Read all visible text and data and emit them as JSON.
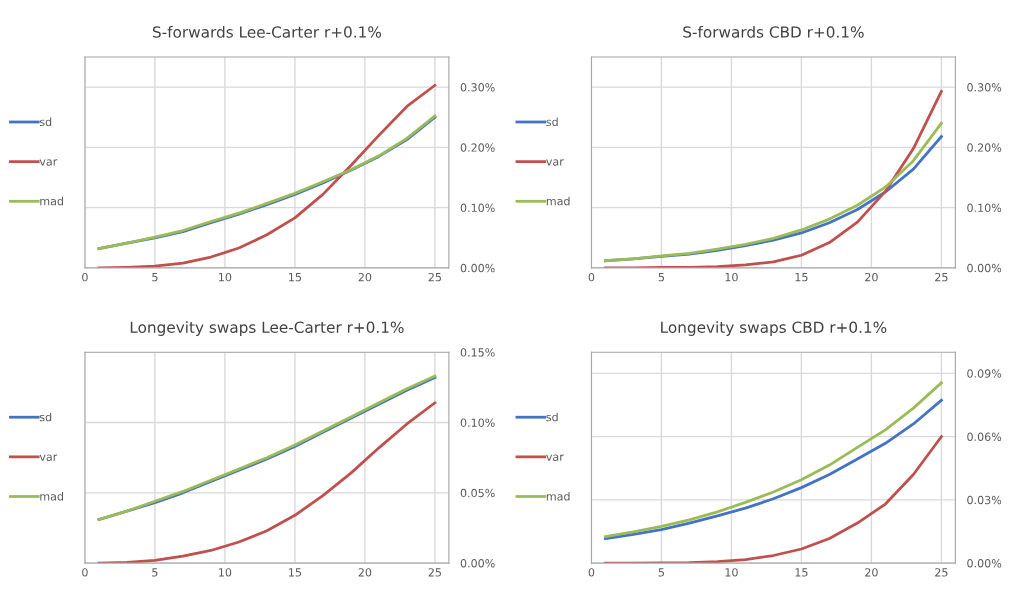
{
  "chart_data": [
    {
      "type": "line",
      "title": "S-forwards Lee-Carter r+0.1%",
      "x": [
        1,
        3,
        5,
        7,
        9,
        11,
        13,
        15,
        17,
        19,
        21,
        23,
        25
      ],
      "xlim": [
        0,
        26
      ],
      "xticks": [
        0,
        5,
        10,
        15,
        20,
        25
      ],
      "ylim": [
        0,
        0.35
      ],
      "yticks": [
        {
          "value": 0,
          "label": "0.00%"
        },
        {
          "value": 0.1,
          "label": "0.10%"
        },
        {
          "value": 0.2,
          "label": "0.20%"
        },
        {
          "value": 0.3,
          "label": "0.30%"
        }
      ],
      "grid": true,
      "legend": "left",
      "series": [
        {
          "name": "sd",
          "color": "#4472c4",
          "values": [
            0.032,
            0.041,
            0.05,
            0.06,
            0.075,
            0.089,
            0.105,
            0.122,
            0.141,
            0.162,
            0.185,
            0.213,
            0.25
          ]
        },
        {
          "name": "var",
          "color": "#c0504d",
          "values": [
            0.0,
            0.001,
            0.003,
            0.008,
            0.018,
            0.033,
            0.055,
            0.083,
            0.122,
            0.17,
            0.22,
            0.268,
            0.303
          ]
        },
        {
          "name": "mad",
          "color": "#9bbb59",
          "values": [
            0.032,
            0.041,
            0.051,
            0.062,
            0.077,
            0.091,
            0.107,
            0.124,
            0.143,
            0.163,
            0.186,
            0.215,
            0.252
          ]
        }
      ]
    },
    {
      "type": "line",
      "title": "S-forwards CBD r+0.1%",
      "x": [
        1,
        3,
        5,
        7,
        9,
        11,
        13,
        15,
        17,
        19,
        21,
        23,
        25
      ],
      "xlim": [
        0,
        26
      ],
      "xticks": [
        0,
        5,
        10,
        15,
        20,
        25
      ],
      "ylim": [
        0,
        0.35
      ],
      "yticks": [
        {
          "value": 0,
          "label": "0.00%"
        },
        {
          "value": 0.1,
          "label": "0.10%"
        },
        {
          "value": 0.2,
          "label": "0.20%"
        },
        {
          "value": 0.3,
          "label": "0.30%"
        }
      ],
      "grid": true,
      "legend": "left",
      "series": [
        {
          "name": "sd",
          "color": "#4472c4",
          "values": [
            0.012,
            0.015,
            0.019,
            0.023,
            0.029,
            0.037,
            0.046,
            0.058,
            0.075,
            0.097,
            0.126,
            0.164,
            0.218
          ]
        },
        {
          "name": "var",
          "color": "#c0504d",
          "values": [
            0,
            0,
            0.001,
            0.001,
            0.002,
            0.005,
            0.01,
            0.021,
            0.042,
            0.076,
            0.127,
            0.198,
            0.293
          ]
        },
        {
          "name": "mad",
          "color": "#9bbb59",
          "values": [
            0.012,
            0.015,
            0.02,
            0.024,
            0.031,
            0.039,
            0.049,
            0.063,
            0.081,
            0.104,
            0.134,
            0.178,
            0.24
          ]
        }
      ]
    },
    {
      "type": "line",
      "title": "Longevity swaps Lee-Carter r+0.1%",
      "x": [
        1,
        3,
        5,
        7,
        9,
        11,
        13,
        15,
        17,
        19,
        21,
        23,
        25
      ],
      "xlim": [
        0,
        26
      ],
      "xticks": [
        0,
        5,
        10,
        15,
        20,
        25
      ],
      "ylim": [
        0,
        0.15
      ],
      "yticks": [
        {
          "value": 0,
          "label": "0.00%"
        },
        {
          "value": 0.05,
          "label": "0.05%"
        },
        {
          "value": 0.1,
          "label": "0.10%"
        },
        {
          "value": 0.15,
          "label": "0.15%"
        }
      ],
      "grid": true,
      "legend": "left",
      "series": [
        {
          "name": "sd",
          "color": "#4472c4",
          "values": [
            0.031,
            0.037,
            0.043,
            0.05,
            0.058,
            0.066,
            0.074,
            0.083,
            0.093,
            0.103,
            0.113,
            0.123,
            0.132
          ]
        },
        {
          "name": "var",
          "color": "#c0504d",
          "values": [
            0,
            0.0005,
            0.002,
            0.005,
            0.009,
            0.015,
            0.023,
            0.034,
            0.048,
            0.064,
            0.082,
            0.099,
            0.114
          ]
        },
        {
          "name": "mad",
          "color": "#9bbb59",
          "values": [
            0.031,
            0.037,
            0.044,
            0.051,
            0.059,
            0.067,
            0.075,
            0.084,
            0.094,
            0.104,
            0.114,
            0.124,
            0.133
          ]
        }
      ]
    },
    {
      "type": "line",
      "title": "Longevity swaps CBD r+0.1%",
      "x": [
        1,
        3,
        5,
        7,
        9,
        11,
        13,
        15,
        17,
        19,
        21,
        23,
        25
      ],
      "xlim": [
        0,
        26
      ],
      "xticks": [
        0,
        5,
        10,
        15,
        20,
        25
      ],
      "ylim": [
        0,
        0.1
      ],
      "yticks": [
        {
          "value": 0,
          "label": "0.00%"
        },
        {
          "value": 0.03,
          "label": "0.03%"
        },
        {
          "value": 0.06,
          "label": "0.06%"
        },
        {
          "value": 0.09,
          "label": "0.09%"
        }
      ],
      "grid": true,
      "legend": "left",
      "series": [
        {
          "name": "sd",
          "color": "#4472c4",
          "values": [
            0.0116,
            0.0136,
            0.0159,
            0.019,
            0.0224,
            0.0261,
            0.0305,
            0.0358,
            0.042,
            0.0494,
            0.0568,
            0.066,
            0.0772
          ]
        },
        {
          "name": "var",
          "color": "#c0504d",
          "values": [
            0,
            0,
            0.0001,
            0.0002,
            0.0007,
            0.0017,
            0.0036,
            0.0067,
            0.0117,
            0.019,
            0.028,
            0.042,
            0.06
          ]
        },
        {
          "name": "mad",
          "color": "#9bbb59",
          "values": [
            0.0126,
            0.0148,
            0.0174,
            0.0205,
            0.0243,
            0.0288,
            0.0337,
            0.0395,
            0.0465,
            0.0549,
            0.0632,
            0.0735,
            0.0855
          ]
        }
      ]
    }
  ]
}
